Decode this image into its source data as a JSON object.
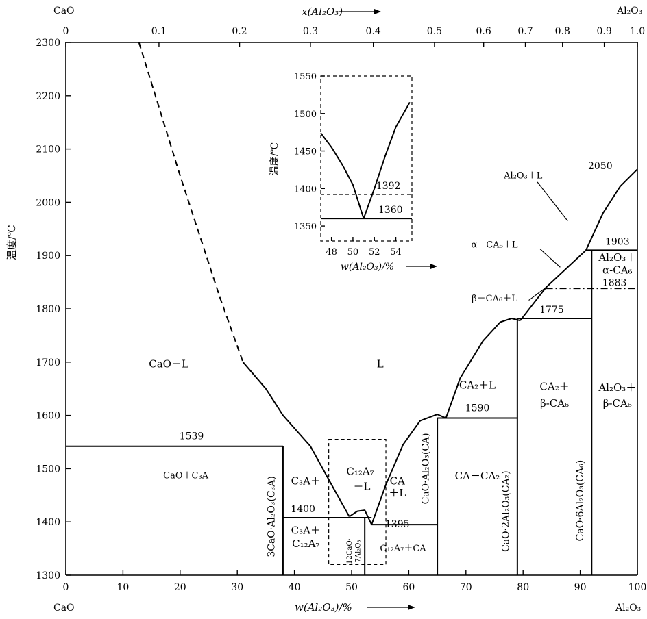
{
  "chart_data": {
    "type": "line",
    "title": "",
    "xlabel_bottom": "w(Al₂O₃)/%",
    "xlabel_top": "x(Al₂O₃)",
    "ylabel": "温度/℃",
    "xlim": [
      0,
      100
    ],
    "ylim": [
      1300,
      2300
    ],
    "corner_labels": {
      "top_left": "CaO",
      "top_right": "Al₂O₃",
      "bottom_left": "CaO",
      "bottom_right": "Al₂O₃"
    },
    "x_ticks": [
      0,
      10,
      20,
      30,
      40,
      50,
      60,
      70,
      80,
      90,
      100
    ],
    "y_ticks": [
      1300,
      1400,
      1500,
      1600,
      1700,
      1800,
      1900,
      2000,
      2100,
      2200,
      2300
    ],
    "top_ticks": [
      {
        "label": "0",
        "w": 0
      },
      {
        "label": "0.1",
        "w": 16.3
      },
      {
        "label": "0.2",
        "w": 30.4
      },
      {
        "label": "0.3",
        "w": 42.8
      },
      {
        "label": "0.4",
        "w": 53.8
      },
      {
        "label": "0.5",
        "w": 64.5
      },
      {
        "label": "0.6",
        "w": 73.1
      },
      {
        "label": "0.7",
        "w": 80.4
      },
      {
        "label": "0.8",
        "w": 86.9
      },
      {
        "label": "0.9",
        "w": 94.2
      },
      {
        "label": "1.0",
        "w": 100
      }
    ],
    "series": [
      {
        "style": "dashed",
        "points": [
          [
            12.8,
            2300
          ],
          [
            20,
            2050
          ],
          [
            27,
            1820
          ],
          [
            31,
            1700
          ]
        ]
      },
      {
        "style": "solid",
        "points": [
          [
            31,
            1700
          ],
          [
            35,
            1650
          ],
          [
            38,
            1600
          ],
          [
            42.8,
            1542
          ]
        ]
      },
      {
        "style": "solid",
        "points": [
          [
            42.8,
            1542
          ],
          [
            47,
            1460
          ],
          [
            49.6,
            1410
          ]
        ]
      },
      {
        "style": "solid",
        "points": [
          [
            49.6,
            1410
          ],
          [
            51,
            1420
          ],
          [
            52.3,
            1422
          ],
          [
            53.5,
            1395
          ]
        ]
      },
      {
        "style": "solid",
        "points": [
          [
            53.5,
            1395
          ],
          [
            56,
            1470
          ],
          [
            59,
            1545
          ],
          [
            62,
            1590
          ],
          [
            65,
            1602
          ],
          [
            66.5,
            1595
          ]
        ]
      },
      {
        "style": "solid",
        "points": [
          [
            66.5,
            1595
          ],
          [
            69,
            1670
          ],
          [
            73,
            1740
          ],
          [
            76,
            1775
          ],
          [
            78,
            1782
          ],
          [
            79.5,
            1778
          ]
        ]
      },
      {
        "style": "solid",
        "points": [
          [
            79.5,
            1778
          ],
          [
            84,
            1840
          ],
          [
            88,
            1880
          ],
          [
            91,
            1910
          ]
        ]
      },
      {
        "style": "solid",
        "points": [
          [
            91,
            1910
          ],
          [
            94,
            1980
          ],
          [
            97,
            2030
          ],
          [
            100,
            2062
          ]
        ]
      }
    ],
    "isotherms": [
      {
        "label": "1539",
        "x0": 0,
        "x1": 38,
        "y": 1542
      },
      {
        "label": "1400",
        "x0": 38,
        "x1": 53.5,
        "y": 1408
      },
      {
        "label": "1395",
        "x0": 53.5,
        "x1": 65,
        "y": 1395
      },
      {
        "label": "1590",
        "x0": 65,
        "x1": 79,
        "y": 1595
      },
      {
        "label": "1775",
        "x0": 79,
        "x1": 92,
        "y": 1782
      },
      {
        "label": "1903",
        "x0": 91,
        "x1": 100,
        "y": 1910
      },
      {
        "label": "1883",
        "x0": 84,
        "x1": 100,
        "y": 1838,
        "style": "dashdot"
      }
    ],
    "verticals": [
      {
        "x": 38,
        "y0": 1300,
        "y1": 1542
      },
      {
        "x": 52.3,
        "y0": 1300,
        "y1": 1408
      },
      {
        "x": 65,
        "y0": 1300,
        "y1": 1595
      },
      {
        "x": 79,
        "y0": 1300,
        "y1": 1782
      },
      {
        "x": 92,
        "y0": 1300,
        "y1": 1910
      }
    ],
    "regions": [
      {
        "label": "CaO－L",
        "x": 18,
        "y": 1690
      },
      {
        "label": "L",
        "x": 55,
        "y": 1690
      },
      {
        "label": "CaO＋C₃A",
        "x": 21,
        "y": 1482
      },
      {
        "label": "C₃A＋",
        "x": 42,
        "y": 1470
      },
      {
        "label": "C₁₂A₇",
        "x": 51.5,
        "y": 1488
      },
      {
        "label": "－L",
        "x": 51.8,
        "y": 1460
      },
      {
        "label": "CA",
        "x": 58,
        "y": 1470
      },
      {
        "label": "＋L",
        "x": 58,
        "y": 1448
      },
      {
        "label": "C₃A＋",
        "x": 42,
        "y": 1378
      },
      {
        "label": "C₁₂A₇",
        "x": 42,
        "y": 1353
      },
      {
        "label": "C₁₂A₇＋CA",
        "x": 59,
        "y": 1345
      },
      {
        "label": "CA－CA₂",
        "x": 72,
        "y": 1480
      },
      {
        "label": "CA₂＋L",
        "x": 72,
        "y": 1650
      },
      {
        "label": "CA₂＋",
        "x": 85.5,
        "y": 1648
      },
      {
        "label": "β-CA₆",
        "x": 85.5,
        "y": 1616
      },
      {
        "label": "Al₂O₃＋",
        "x": 96.5,
        "y": 1646
      },
      {
        "label": "β-CA₆",
        "x": 96.5,
        "y": 1616
      },
      {
        "label": "Al₂O₃＋",
        "x": 96.5,
        "y": 1890
      },
      {
        "label": "α-CA₆",
        "x": 96.5,
        "y": 1866
      },
      {
        "label": "α－CA₆＋L",
        "x": 75,
        "y": 1915
      },
      {
        "label": "β－CA₆＋L",
        "x": 75,
        "y": 1814
      },
      {
        "label": "Al₂O₃＋L",
        "x": 80,
        "y": 2045
      },
      {
        "label": "2050",
        "x": 93.5,
        "y": 2062
      }
    ],
    "vertical_labels": [
      {
        "label": "3CaO·Al₂O₃(C₃A)",
        "x": 36.5,
        "y": 1410
      },
      {
        "label": "CaO·Al₂O₃(CA)",
        "x": 63.5,
        "y": 1500
      },
      {
        "label": "CaO·2Al₂O₃(CA₂)",
        "x": 77.5,
        "y": 1420
      },
      {
        "label": "CaO·6Al₂O₃(CA₆)",
        "x": 90.5,
        "y": 1440
      }
    ],
    "small_vertical_labels": [
      {
        "label": "12CaO·",
        "x": 50,
        "y": 1345
      },
      {
        "label": "7Al₂O₃",
        "x": 51.5,
        "y": 1345
      }
    ],
    "dashed_box": {
      "x0": 46,
      "x1": 56,
      "y0": 1320,
      "y1": 1555
    },
    "inset": {
      "xlim": [
        47,
        55.5
      ],
      "ylim": [
        1330,
        1550
      ],
      "ylabel": "温度/℃",
      "xlabel": "w(Al₂O₃)/%",
      "x_ticks": [
        48,
        50,
        52,
        54
      ],
      "y_ticks": [
        1350,
        1400,
        1450,
        1500,
        1550
      ],
      "left_branch": [
        [
          47,
          1474
        ],
        [
          48,
          1455
        ],
        [
          49,
          1432
        ],
        [
          50,
          1405
        ],
        [
          51,
          1360
        ]
      ],
      "right_branch": [
        [
          51,
          1360
        ],
        [
          52,
          1400
        ],
        [
          53,
          1443
        ],
        [
          54,
          1482
        ],
        [
          55.3,
          1515
        ]
      ],
      "line_1392": {
        "label": "1392",
        "y": 1392
      },
      "line_1360": {
        "label": "1360",
        "y": 1360
      }
    }
  }
}
